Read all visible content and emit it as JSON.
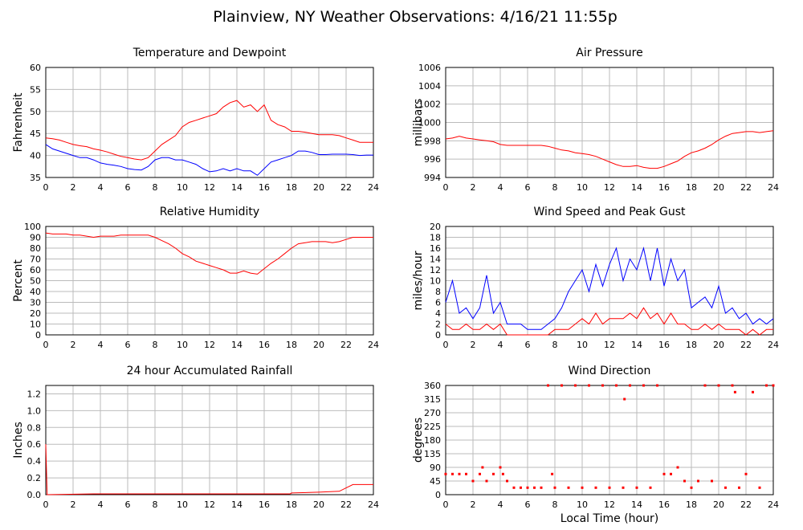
{
  "title": "Plainview, NY Weather Observations: 4/16/21 11:55p",
  "chart_data": [
    {
      "type": "line",
      "title": "Temperature and Dewpoint",
      "ylabel": "Fahrenheit",
      "xlim": [
        0,
        24
      ],
      "xticks": [
        0,
        2,
        4,
        6,
        8,
        10,
        12,
        14,
        16,
        18,
        20,
        22,
        24
      ],
      "ylim": [
        35,
        60
      ],
      "yticks": [
        35,
        40,
        45,
        50,
        55,
        60
      ],
      "grid": true,
      "x": [
        0,
        0.5,
        1,
        1.5,
        2,
        2.5,
        3,
        3.5,
        4,
        4.5,
        5,
        5.5,
        6,
        6.5,
        7,
        7.5,
        8,
        8.5,
        9,
        9.5,
        10,
        10.5,
        11,
        11.5,
        12,
        12.5,
        13,
        13.5,
        14,
        14.5,
        15,
        15.5,
        16,
        16.5,
        17,
        17.5,
        18,
        18.5,
        19,
        19.5,
        20,
        20.5,
        21,
        21.5,
        22,
        22.5,
        23,
        23.5,
        24
      ],
      "series": [
        {
          "color": "#ff0000",
          "values": [
            44,
            43.8,
            43.5,
            43,
            42.5,
            42.2,
            42,
            41.5,
            41.2,
            40.8,
            40.3,
            39.8,
            39.5,
            39.2,
            39,
            39.5,
            41,
            42.5,
            43.5,
            44.5,
            46.5,
            47.5,
            48,
            48.5,
            49,
            49.5,
            51,
            52,
            52.5,
            51,
            51.5,
            50,
            51.5,
            48,
            47,
            46.5,
            45.5,
            45.5,
            45.3,
            45,
            44.7,
            44.7,
            44.7,
            44.5,
            44,
            43.5,
            43,
            43,
            43
          ]
        },
        {
          "color": "#0000ff",
          "values": [
            42.5,
            41.5,
            41,
            40.5,
            40,
            39.5,
            39.5,
            39,
            38.3,
            38,
            37.8,
            37.5,
            37,
            36.8,
            36.7,
            37.5,
            39,
            39.5,
            39.5,
            39,
            39,
            38.5,
            38,
            37,
            36.3,
            36.5,
            37,
            36.5,
            37,
            36.5,
            36.5,
            35.5,
            37,
            38.5,
            39,
            39.5,
            40,
            41,
            41,
            40.7,
            40.2,
            40.2,
            40.3,
            40.3,
            40.3,
            40.2,
            40,
            40.1,
            40.1
          ]
        }
      ]
    },
    {
      "type": "line",
      "title": "Air Pressure",
      "ylabel": "millibars",
      "xlim": [
        0,
        24
      ],
      "xticks": [
        0,
        2,
        4,
        6,
        8,
        10,
        12,
        14,
        16,
        18,
        20,
        22,
        24
      ],
      "ylim": [
        994,
        1006
      ],
      "yticks": [
        994,
        996,
        998,
        1000,
        1002,
        1004,
        1006
      ],
      "grid": true,
      "x": [
        0,
        0.5,
        1,
        1.5,
        2,
        2.5,
        3,
        3.5,
        4,
        4.5,
        5,
        5.5,
        6,
        6.5,
        7,
        7.5,
        8,
        8.5,
        9,
        9.5,
        10,
        10.5,
        11,
        11.5,
        12,
        12.5,
        13,
        13.5,
        14,
        14.5,
        15,
        15.5,
        16,
        16.5,
        17,
        17.5,
        18,
        18.5,
        19,
        19.5,
        20,
        20.5,
        21,
        21.5,
        22,
        22.5,
        23,
        23.5,
        24
      ],
      "series": [
        {
          "color": "#ff0000",
          "values": [
            998.2,
            998.3,
            998.5,
            998.3,
            998.2,
            998.1,
            998,
            997.9,
            997.6,
            997.5,
            997.5,
            997.5,
            997.5,
            997.5,
            997.5,
            997.4,
            997.2,
            997,
            996.9,
            996.7,
            996.6,
            996.5,
            996.3,
            996,
            995.7,
            995.4,
            995.2,
            995.2,
            995.3,
            995.1,
            995,
            995,
            995.2,
            995.5,
            995.8,
            996.3,
            996.7,
            996.9,
            997.2,
            997.6,
            998.1,
            998.5,
            998.8,
            998.9,
            999,
            999,
            998.9,
            999,
            999.1
          ]
        }
      ]
    },
    {
      "type": "line",
      "title": "Relative Humidity",
      "ylabel": "Percent",
      "xlim": [
        0,
        24
      ],
      "xticks": [
        0,
        2,
        4,
        6,
        8,
        10,
        12,
        14,
        16,
        18,
        20,
        22,
        24
      ],
      "ylim": [
        0,
        100
      ],
      "yticks": [
        0,
        10,
        20,
        30,
        40,
        50,
        60,
        70,
        80,
        90,
        100
      ],
      "grid": true,
      "x": [
        0,
        0.5,
        1,
        1.5,
        2,
        2.5,
        3,
        3.5,
        4,
        4.5,
        5,
        5.5,
        6,
        6.5,
        7,
        7.5,
        8,
        8.5,
        9,
        9.5,
        10,
        10.5,
        11,
        11.5,
        12,
        12.5,
        13,
        13.5,
        14,
        14.5,
        15,
        15.5,
        16,
        16.5,
        17,
        17.5,
        18,
        18.5,
        19,
        19.5,
        20,
        20.5,
        21,
        21.5,
        22,
        22.5,
        23,
        23.5,
        24
      ],
      "series": [
        {
          "color": "#ff0000",
          "values": [
            94,
            93,
            93,
            93,
            92,
            92,
            91,
            90,
            91,
            91,
            91,
            92,
            92,
            92,
            92,
            92,
            90,
            87,
            84,
            80,
            75,
            72,
            68,
            66,
            64,
            62,
            60,
            57,
            57,
            59,
            57,
            56,
            61,
            66,
            70,
            75,
            80,
            84,
            85,
            86,
            86,
            86,
            85,
            86,
            88,
            90,
            90,
            90,
            90
          ]
        }
      ]
    },
    {
      "type": "line",
      "title": "Wind Speed and Peak Gust",
      "ylabel": "miles/hour",
      "xlim": [
        0,
        24
      ],
      "xticks": [
        0,
        2,
        4,
        6,
        8,
        10,
        12,
        14,
        16,
        18,
        20,
        22,
        24
      ],
      "ylim": [
        0,
        20
      ],
      "yticks": [
        0,
        2,
        4,
        6,
        8,
        10,
        12,
        14,
        16,
        18,
        20
      ],
      "grid": true,
      "x": [
        0,
        0.5,
        1,
        1.5,
        2,
        2.5,
        3,
        3.5,
        4,
        4.5,
        5,
        5.5,
        6,
        6.5,
        7,
        7.5,
        8,
        8.5,
        9,
        9.5,
        10,
        10.5,
        11,
        11.5,
        12,
        12.5,
        13,
        13.5,
        14,
        14.5,
        15,
        15.5,
        16,
        16.5,
        17,
        17.5,
        18,
        18.5,
        19,
        19.5,
        20,
        20.5,
        21,
        21.5,
        22,
        22.5,
        23,
        23.5,
        24
      ],
      "series": [
        {
          "color": "#0000ff",
          "values": [
            6,
            10,
            4,
            5,
            3,
            5,
            11,
            4,
            6,
            2,
            2,
            2,
            1,
            1,
            1,
            2,
            3,
            5,
            8,
            10,
            12,
            8,
            13,
            9,
            13,
            16,
            10,
            14,
            12,
            16,
            10,
            16,
            9,
            14,
            10,
            12,
            5,
            6,
            7,
            5,
            9,
            4,
            5,
            3,
            4,
            2,
            3,
            2,
            3
          ]
        },
        {
          "color": "#ff0000",
          "values": [
            2,
            1,
            1,
            2,
            1,
            1,
            2,
            1,
            2,
            0,
            0,
            0,
            0,
            0,
            0,
            0,
            1,
            1,
            1,
            2,
            3,
            2,
            4,
            2,
            3,
            3,
            3,
            4,
            3,
            5,
            3,
            4,
            2,
            4,
            2,
            2,
            1,
            1,
            2,
            1,
            2,
            1,
            1,
            1,
            0,
            1,
            0,
            1,
            1
          ]
        }
      ]
    },
    {
      "type": "line",
      "title": "24 hour Accumulated Rainfall",
      "ylabel": "Inches",
      "xlim": [
        0,
        24
      ],
      "xticks": [
        0,
        2,
        4,
        6,
        8,
        10,
        12,
        14,
        16,
        18,
        20,
        22,
        24
      ],
      "ylim": [
        0,
        1.3
      ],
      "yticks": [
        {
          "value": 0,
          "label": "0.0"
        },
        {
          "value": 0.2,
          "label": "0.2"
        },
        {
          "value": 0.4,
          "label": "0.4"
        },
        {
          "value": 0.6,
          "label": "0.6"
        },
        {
          "value": 0.8,
          "label": "0.8"
        },
        {
          "value": 1,
          "label": "1.0"
        },
        {
          "value": 1.2,
          "label": "1.2"
        }
      ],
      "grid": true,
      "x": [
        0,
        0.1,
        3.5,
        17.9,
        18,
        20,
        21.5,
        22,
        22.5,
        24
      ],
      "series": [
        {
          "color": "#ff0000",
          "values": [
            0.6,
            0,
            0.01,
            0.01,
            0.02,
            0.03,
            0.04,
            0.08,
            0.12,
            0.12
          ]
        }
      ]
    },
    {
      "type": "scatter",
      "title": "Wind Direction",
      "ylabel": "degrees",
      "xlabel": "Local Time (hour)",
      "xlim": [
        0,
        24
      ],
      "xticks": [
        0,
        2,
        4,
        6,
        8,
        10,
        12,
        14,
        16,
        18,
        20,
        22,
        24
      ],
      "ylim": [
        0,
        360
      ],
      "yticks": [
        0,
        45,
        90,
        135,
        180,
        225,
        270,
        315,
        360
      ],
      "grid": true,
      "color": "#ff0000",
      "x": [
        0,
        0.5,
        1,
        1.5,
        2,
        2.5,
        2.7,
        3,
        3.5,
        4,
        4.2,
        4.5,
        5,
        5.5,
        6,
        6.5,
        7,
        7.5,
        7.8,
        8,
        8.5,
        9,
        9.5,
        10,
        10.5,
        11,
        11.5,
        12,
        12.5,
        13,
        13.1,
        13.5,
        14,
        14.5,
        15,
        15.5,
        16,
        16.5,
        17,
        17.5,
        18,
        18.5,
        19,
        19.5,
        20,
        20.5,
        21,
        21.2,
        21.5,
        22,
        22.5,
        23,
        23.5,
        24
      ],
      "values": [
        68,
        68,
        68,
        68,
        45,
        68,
        90,
        45,
        68,
        90,
        68,
        45,
        23,
        23,
        23,
        23,
        23,
        360,
        68,
        23,
        360,
        23,
        360,
        23,
        360,
        23,
        360,
        23,
        360,
        23,
        315,
        360,
        23,
        360,
        23,
        360,
        68,
        68,
        90,
        45,
        23,
        45,
        360,
        45,
        360,
        23,
        360,
        338,
        23,
        68,
        338,
        23,
        360,
        360
      ]
    }
  ]
}
